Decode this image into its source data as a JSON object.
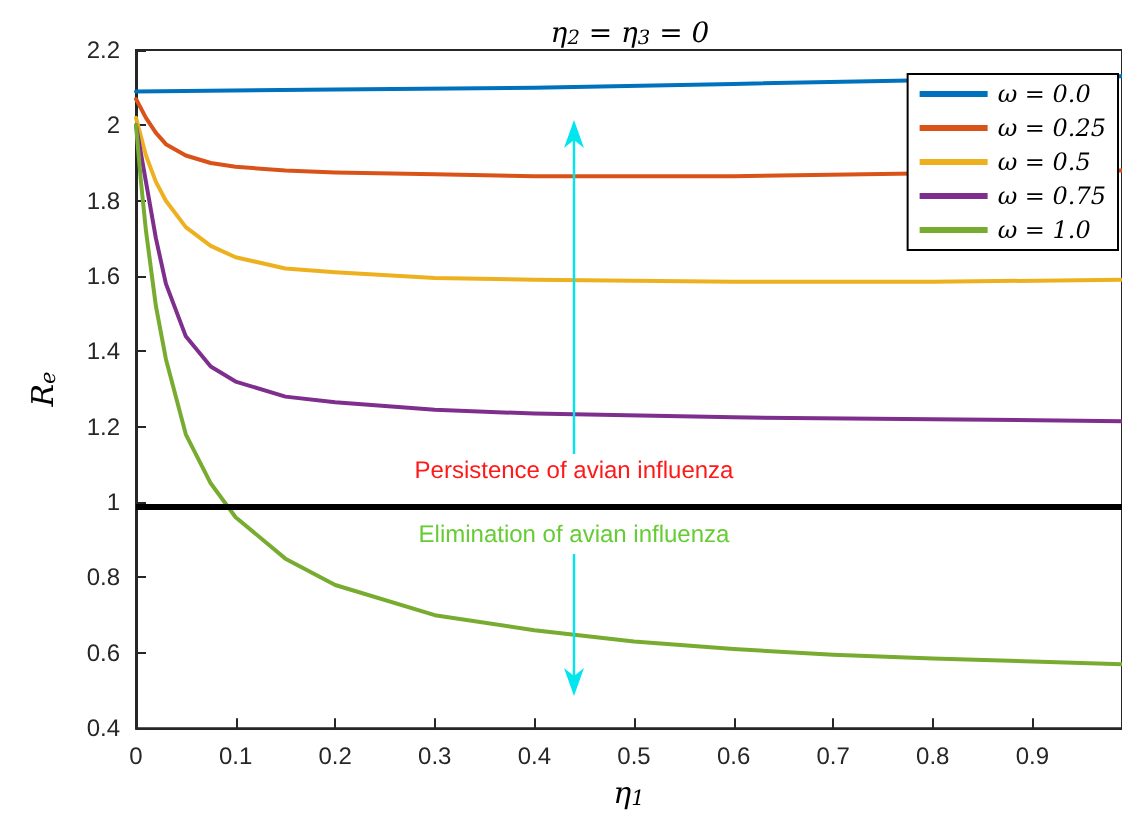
{
  "chart_data": {
    "type": "line",
    "title": "η$_{2}$ = η$_{3}$ = 0",
    "xlabel": "η$_{1}$",
    "ylabel": "R$_{e}$",
    "xlim": [
      0,
      0.99
    ],
    "xticks": [
      0,
      0.1,
      0.2,
      0.3,
      0.4,
      0.5,
      0.6,
      0.7,
      0.8,
      0.9
    ],
    "ylim": [
      0.4,
      2.2
    ],
    "yticks": [
      0.4,
      0.6,
      0.8,
      1,
      1.2,
      1.4,
      1.6,
      1.8,
      2,
      2.2
    ],
    "grid": false,
    "legend": "top right",
    "marker": "none",
    "line_style": "solid",
    "ref_lines": [
      {
        "axis": "y",
        "value": 0.99,
        "color": "#000000"
      }
    ],
    "annotations": [
      "Persistence of avian influenza",
      "Elimination of avian influenza"
    ],
    "series": [
      {
        "name": "ω = 0.0",
        "color": "#0072bd",
        "x": [
          0,
          0.2,
          0.4,
          0.6,
          0.99
        ],
        "values": [
          2.09,
          2.095,
          2.1,
          2.11,
          2.13
        ]
      },
      {
        "name": "ω = 0.25",
        "color": "#d95319",
        "x": [
          0,
          0.01,
          0.02,
          0.03,
          0.05,
          0.075,
          0.1,
          0.15,
          0.2,
          0.3,
          0.4,
          0.6,
          0.99
        ],
        "values": [
          2.07,
          2.02,
          1.98,
          1.95,
          1.92,
          1.9,
          1.89,
          1.88,
          1.875,
          1.87,
          1.865,
          1.865,
          1.88
        ]
      },
      {
        "name": "ω = 0.5",
        "color": "#edb120",
        "x": [
          0,
          0.01,
          0.02,
          0.03,
          0.05,
          0.075,
          0.1,
          0.15,
          0.2,
          0.3,
          0.4,
          0.6,
          0.8,
          0.99
        ],
        "values": [
          2.02,
          1.92,
          1.85,
          1.8,
          1.73,
          1.68,
          1.65,
          1.62,
          1.61,
          1.595,
          1.59,
          1.585,
          1.585,
          1.59
        ]
      },
      {
        "name": "ω = 0.75",
        "color": "#7e2f8e",
        "x": [
          0,
          0.01,
          0.02,
          0.03,
          0.05,
          0.075,
          0.1,
          0.15,
          0.2,
          0.3,
          0.4,
          0.6,
          0.8,
          0.99
        ],
        "values": [
          2.0,
          1.85,
          1.7,
          1.58,
          1.44,
          1.36,
          1.32,
          1.28,
          1.265,
          1.245,
          1.235,
          1.225,
          1.22,
          1.215
        ]
      },
      {
        "name": "ω = 1.0",
        "color": "#77ac30",
        "x": [
          0,
          0.005,
          0.01,
          0.02,
          0.03,
          0.05,
          0.075,
          0.1,
          0.15,
          0.2,
          0.3,
          0.4,
          0.5,
          0.6,
          0.7,
          0.8,
          0.99
        ],
        "values": [
          2.0,
          1.85,
          1.72,
          1.52,
          1.38,
          1.18,
          1.05,
          0.96,
          0.85,
          0.78,
          0.7,
          0.66,
          0.63,
          0.61,
          0.595,
          0.585,
          0.57
        ]
      }
    ]
  }
}
